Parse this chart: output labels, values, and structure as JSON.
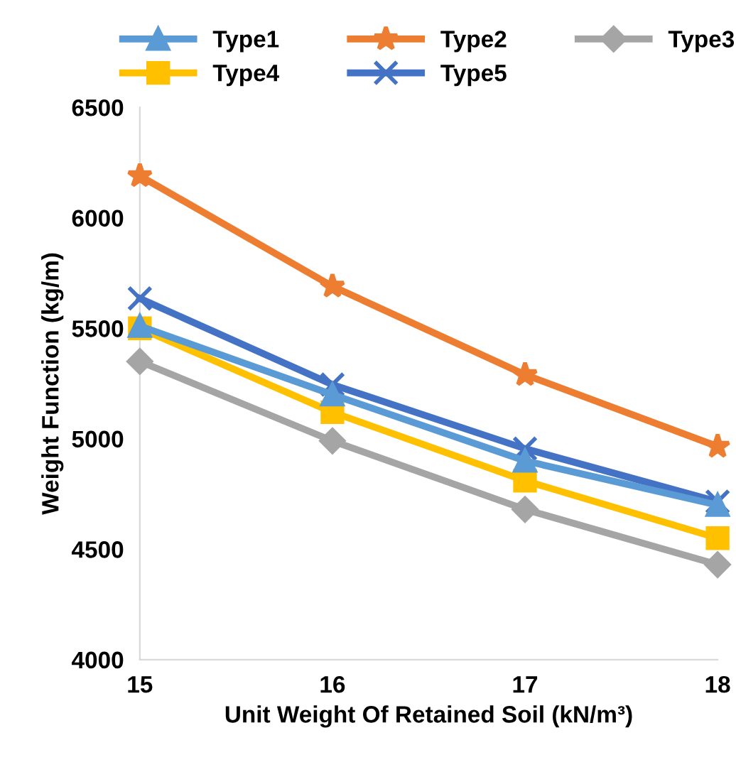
{
  "chart_data": {
    "type": "line",
    "xlabel": "Unit Weight Of Retained Soil (kN/m³)",
    "ylabel": "Weight Function (kg/m)",
    "x": [
      15,
      16,
      17,
      18
    ],
    "xlim": [
      15,
      18
    ],
    "xticks": [
      15,
      16,
      17,
      18
    ],
    "ylim": [
      4000,
      6500
    ],
    "yticks": [
      4000,
      4500,
      5000,
      5500,
      6000,
      6500
    ],
    "grid": false,
    "legend": "top",
    "line_style": "solid",
    "series": [
      {
        "name": "Type1",
        "color": "#5b9bd5",
        "marker": "triangle",
        "values": [
          5510,
          5200,
          4900,
          4700
        ]
      },
      {
        "name": "Type2",
        "color": "#ed7d31",
        "marker": "star",
        "values": [
          6190,
          5690,
          5290,
          4965
        ]
      },
      {
        "name": "Type3",
        "color": "#a5a5a5",
        "marker": "diamond",
        "values": [
          5350,
          4990,
          4680,
          4430
        ]
      },
      {
        "name": "Type4",
        "color": "#ffc000",
        "marker": "square",
        "values": [
          5500,
          5120,
          4810,
          4550
        ]
      },
      {
        "name": "Type5",
        "color": "#4472c4",
        "marker": "cross",
        "values": [
          5635,
          5245,
          4955,
          4715
        ]
      }
    ]
  }
}
